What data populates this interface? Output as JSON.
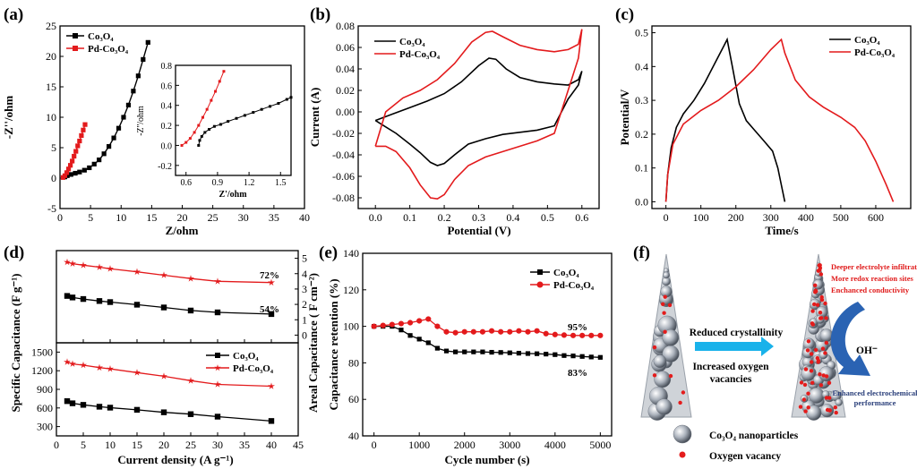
{
  "panels": {
    "a": {
      "tag": "(a)",
      "xlabel": "Z/ohm",
      "ylabel": "-Z''/ohm",
      "inset": {
        "xlabel": "Z'/ohm",
        "ylabel": "-Z''/ohm"
      }
    },
    "b": {
      "tag": "(b)",
      "xlabel": "Potential (V)",
      "ylabel": "Current (A)"
    },
    "c": {
      "tag": "(c)",
      "xlabel": "Time/s",
      "ylabel": "Potential/V"
    },
    "d": {
      "tag": "(d)",
      "xlabel": "Current density (A g⁻¹)",
      "ylabel": "Specific Capacitance (F g⁻¹)",
      "ylabel_right": "Areal Capacitance ( F cm⁻²)",
      "ann_pd": "72%",
      "ann_co": "54%"
    },
    "e": {
      "tag": "(e)",
      "xlabel": "Cycle number (s)",
      "ylabel": "Capacitance retention (%)",
      "ann_pd": "95%",
      "ann_co": "83%"
    },
    "f": {
      "tag": "(f)",
      "arrow_top": "Reduced crystallinity",
      "arrow_bottom": [
        "Increased oxygen",
        "vacancies"
      ],
      "bullets": [
        "Deeper electrolyte infiltration",
        "More redox reaction sites",
        "Enchanced conductivity"
      ],
      "oh": "OH⁻",
      "enhanced": [
        "Enhanced electrochemical",
        "performance"
      ],
      "legend_particles": "Co₃O₄ nanoparticles",
      "legend_vacancy": "Oxygen vacancy"
    }
  },
  "colors": {
    "co3o4": "#000000",
    "pd": "#e31a1c",
    "arrow": "#19b2ea",
    "blue_arrow": "#2a63b3"
  },
  "chart_data": [
    {
      "type": "line",
      "panel": "a",
      "xlabel": "Z/ohm",
      "ylabel": "-Z''/ohm",
      "xlim": [
        0,
        40
      ],
      "ylim": [
        -5,
        25
      ],
      "xticks": [
        0,
        5,
        10,
        15,
        20,
        25,
        30,
        35,
        40
      ],
      "yticks": [
        -5,
        0,
        5,
        10,
        15,
        20,
        25
      ],
      "series": [
        {
          "name": "Co₃O₄",
          "marker": "square",
          "x": [
            0.8,
            1.2,
            1.8,
            2.5,
            3.2,
            4.0,
            4.8,
            5.6,
            6.4,
            7.2,
            8.0,
            8.8,
            9.6,
            10.4,
            11.2,
            12.0,
            12.8,
            13.6,
            14.4
          ],
          "y": [
            0.2,
            0.4,
            0.6,
            0.8,
            1.0,
            1.3,
            1.7,
            2.3,
            3.0,
            4.0,
            5.2,
            6.6,
            8.2,
            10.0,
            12.0,
            14.3,
            16.8,
            19.5,
            22.3
          ]
        },
        {
          "name": "Pd-Co₃O₄",
          "marker": "square",
          "x": [
            0.5,
            0.8,
            1.1,
            1.4,
            1.7,
            2.0,
            2.3,
            2.6,
            2.9,
            3.2,
            3.5,
            3.8,
            4.1
          ],
          "y": [
            0.1,
            0.4,
            0.9,
            1.5,
            2.1,
            2.8,
            3.6,
            4.4,
            5.3,
            6.1,
            7.0,
            7.9,
            8.8
          ]
        }
      ],
      "inset": {
        "xlim": [
          0.5,
          1.6
        ],
        "ylim": [
          -0.3,
          0.8
        ],
        "xticks": [
          0.6,
          0.9,
          1.2,
          1.5
        ],
        "yticks": [
          -0.2,
          0.0,
          0.2,
          0.4,
          0.6,
          0.8
        ],
        "series": [
          {
            "name": "Co₃O₄",
            "x": [
              0.72,
              0.73,
              0.75,
              0.78,
              0.82,
              0.87,
              0.93,
              1.0,
              1.08,
              1.16,
              1.24,
              1.32,
              1.4,
              1.48,
              1.56,
              1.6
            ],
            "y": [
              0.0,
              0.05,
              0.09,
              0.13,
              0.16,
              0.19,
              0.21,
              0.24,
              0.27,
              0.3,
              0.33,
              0.36,
              0.39,
              0.42,
              0.46,
              0.48
            ]
          },
          {
            "name": "Pd-Co₃O₄",
            "x": [
              0.56,
              0.6,
              0.64,
              0.68,
              0.72,
              0.76,
              0.8,
              0.84,
              0.88,
              0.92,
              0.96
            ],
            "y": [
              0.0,
              0.03,
              0.07,
              0.13,
              0.2,
              0.28,
              0.36,
              0.45,
              0.54,
              0.64,
              0.74
            ]
          }
        ]
      }
    },
    {
      "type": "line",
      "panel": "b",
      "xlabel": "Potential (V)",
      "ylabel": "Current (A)",
      "xlim": [
        -0.05,
        0.65
      ],
      "ylim": [
        -0.09,
        0.08
      ],
      "xticks": [
        0.0,
        0.1,
        0.2,
        0.3,
        0.4,
        0.5,
        0.6
      ],
      "yticks": [
        -0.08,
        -0.06,
        -0.04,
        -0.02,
        0.0,
        0.02,
        0.04,
        0.06,
        0.08
      ],
      "series": [
        {
          "name": "Co₃O₄",
          "x": [
            0.0,
            0.05,
            0.1,
            0.15,
            0.2,
            0.25,
            0.3,
            0.33,
            0.35,
            0.38,
            0.42,
            0.47,
            0.52,
            0.56,
            0.59,
            0.6,
            0.59,
            0.56,
            0.52,
            0.47,
            0.42,
            0.37,
            0.32,
            0.27,
            0.23,
            0.2,
            0.18,
            0.16,
            0.13,
            0.1,
            0.06,
            0.02,
            0.0
          ],
          "y": [
            -0.008,
            -0.002,
            0.004,
            0.01,
            0.017,
            0.028,
            0.043,
            0.05,
            0.049,
            0.04,
            0.032,
            0.028,
            0.026,
            0.025,
            0.03,
            0.038,
            0.025,
            0.012,
            -0.013,
            -0.017,
            -0.019,
            -0.021,
            -0.025,
            -0.03,
            -0.04,
            -0.048,
            -0.05,
            -0.047,
            -0.038,
            -0.03,
            -0.02,
            -0.012,
            -0.008
          ]
        },
        {
          "name": "Pd-Co₃O₄",
          "x": [
            0.0,
            0.03,
            0.08,
            0.13,
            0.18,
            0.23,
            0.28,
            0.32,
            0.34,
            0.37,
            0.42,
            0.47,
            0.52,
            0.56,
            0.59,
            0.6,
            0.59,
            0.56,
            0.52,
            0.47,
            0.42,
            0.37,
            0.32,
            0.27,
            0.23,
            0.2,
            0.18,
            0.16,
            0.13,
            0.1,
            0.06,
            0.03,
            0.0
          ],
          "y": [
            -0.032,
            0.0,
            0.013,
            0.02,
            0.03,
            0.045,
            0.065,
            0.074,
            0.075,
            0.07,
            0.062,
            0.058,
            0.056,
            0.058,
            0.063,
            0.077,
            0.05,
            0.02,
            -0.02,
            -0.027,
            -0.032,
            -0.037,
            -0.042,
            -0.05,
            -0.063,
            -0.077,
            -0.081,
            -0.08,
            -0.068,
            -0.052,
            -0.037,
            -0.032,
            -0.032
          ]
        }
      ]
    },
    {
      "type": "line",
      "panel": "c",
      "xlabel": "Time/s",
      "ylabel": "Potential/V",
      "xlim": [
        -40,
        700
      ],
      "ylim": [
        -0.02,
        0.52
      ],
      "xticks": [
        0,
        100,
        200,
        300,
        400,
        500,
        600
      ],
      "yticks": [
        0.0,
        0.1,
        0.2,
        0.3,
        0.4,
        0.5
      ],
      "series": [
        {
          "name": "Co₃O₄",
          "x": [
            0,
            5,
            15,
            30,
            50,
            80,
            110,
            140,
            165,
            175,
            190,
            210,
            230,
            255,
            280,
            305,
            320,
            330,
            340
          ],
          "y": [
            0.0,
            0.08,
            0.16,
            0.22,
            0.26,
            0.3,
            0.35,
            0.41,
            0.46,
            0.48,
            0.4,
            0.29,
            0.24,
            0.21,
            0.18,
            0.15,
            0.1,
            0.05,
            0.0
          ]
        },
        {
          "name": "Pd-Co₃O₄",
          "x": [
            0,
            5,
            20,
            50,
            100,
            150,
            200,
            250,
            300,
            330,
            340,
            370,
            410,
            450,
            500,
            540,
            570,
            600,
            630,
            650
          ],
          "y": [
            0.0,
            0.08,
            0.17,
            0.23,
            0.27,
            0.3,
            0.34,
            0.39,
            0.45,
            0.48,
            0.44,
            0.36,
            0.31,
            0.28,
            0.25,
            0.22,
            0.18,
            0.12,
            0.05,
            0.0
          ]
        }
      ]
    },
    {
      "type": "line",
      "panel": "d",
      "xlabel": "Current density (A g⁻¹)",
      "xlim": [
        0,
        45
      ],
      "xticks": [
        0,
        5,
        10,
        15,
        20,
        25,
        30,
        35,
        40,
        45
      ],
      "top": {
        "ylabel_right": "Areal Capacitance ( F cm⁻²)",
        "ylim": [
          -0.5,
          5.5
        ],
        "yticks": [
          0,
          1,
          2,
          3,
          4,
          5
        ],
        "series": [
          {
            "name": "Pd-Co₃O₄",
            "marker": "star",
            "x": [
              2,
              3,
              5,
              8,
              10,
              15,
              20,
              25,
              30,
              40
            ],
            "y": [
              4.75,
              4.65,
              4.55,
              4.42,
              4.32,
              4.12,
              3.9,
              3.68,
              3.5,
              3.42
            ]
          },
          {
            "name": "Co₃O₄",
            "marker": "square",
            "x": [
              2,
              3,
              5,
              8,
              10,
              15,
              20,
              25,
              30,
              40
            ],
            "y": [
              2.55,
              2.45,
              2.35,
              2.22,
              2.15,
              1.98,
              1.8,
              1.6,
              1.48,
              1.37
            ]
          }
        ]
      },
      "bottom": {
        "ylabel": "Specific Capacitance (F g⁻¹)",
        "ylim": [
          150,
          1650
        ],
        "yticks": [
          300,
          600,
          900,
          1200,
          1500
        ],
        "series": [
          {
            "name": "Co₃O₄",
            "marker": "square",
            "x": [
              2,
              3,
              5,
              8,
              10,
              15,
              20,
              25,
              30,
              40
            ],
            "y": [
              710,
              675,
              650,
              620,
              605,
              570,
              530,
              500,
              460,
              390
            ]
          },
          {
            "name": "Pd-Co₃O₄",
            "marker": "star",
            "x": [
              2,
              3,
              5,
              8,
              10,
              15,
              20,
              25,
              30,
              40
            ],
            "y": [
              1340,
              1310,
              1290,
              1250,
              1230,
              1170,
              1110,
              1040,
              980,
              950
            ]
          }
        ]
      }
    },
    {
      "type": "line",
      "panel": "e",
      "xlabel": "Cycle number (s)",
      "ylabel": "Capacitance retention (%)",
      "xlim": [
        -250,
        5250
      ],
      "ylim": [
        40,
        140
      ],
      "xticks": [
        0,
        1000,
        2000,
        3000,
        4000,
        5000
      ],
      "yticks": [
        40,
        60,
        80,
        100,
        120,
        140
      ],
      "series": [
        {
          "name": "Co₃O₄",
          "marker": "square",
          "x": [
            0,
            200,
            400,
            600,
            800,
            1000,
            1200,
            1400,
            1600,
            1800,
            2000,
            2200,
            2400,
            2600,
            2800,
            3000,
            3200,
            3400,
            3600,
            3800,
            4000,
            4200,
            4400,
            4600,
            4800,
            5000
          ],
          "y": [
            100,
            100,
            100,
            98,
            95,
            93,
            91,
            88,
            86.5,
            86,
            86,
            86,
            86,
            85.8,
            85.7,
            85.5,
            85.3,
            85.1,
            85,
            84.8,
            84.5,
            84,
            83.8,
            83.5,
            83.2,
            83
          ]
        },
        {
          "name": "Pd-Co₃O₄",
          "marker": "circle",
          "x": [
            0,
            200,
            400,
            600,
            800,
            1000,
            1200,
            1400,
            1600,
            1800,
            2000,
            2200,
            2400,
            2600,
            2800,
            3000,
            3200,
            3400,
            3600,
            3800,
            4000,
            4200,
            4400,
            4600,
            4800,
            5000
          ],
          "y": [
            100,
            100.5,
            101,
            101.5,
            102,
            103,
            104,
            100,
            97,
            96.5,
            97,
            97,
            97,
            97.5,
            97,
            97,
            97.5,
            97,
            97.5,
            96,
            95.5,
            95.2,
            95,
            95,
            95,
            95
          ]
        }
      ]
    }
  ]
}
